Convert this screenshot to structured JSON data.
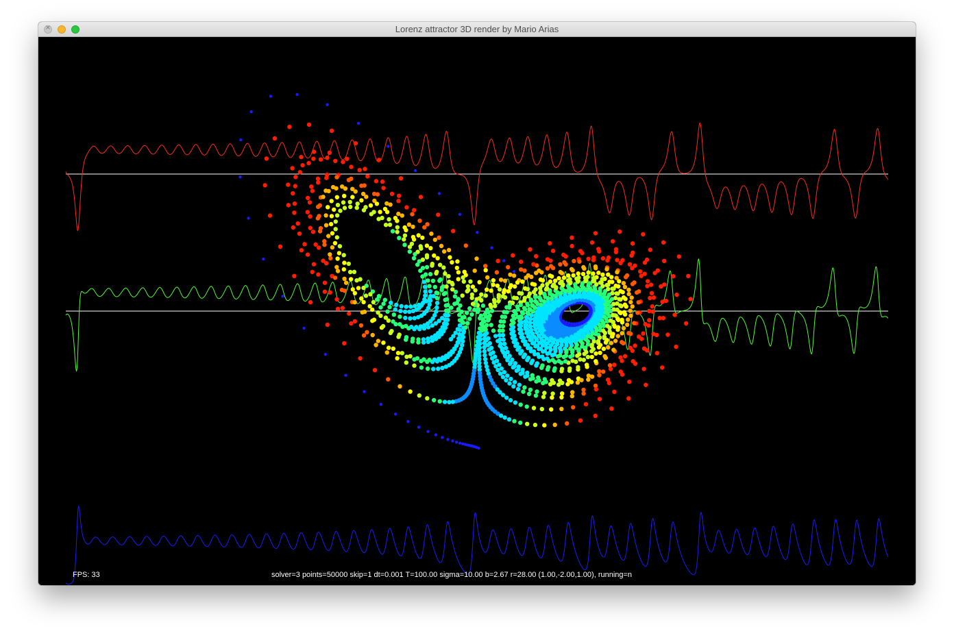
{
  "window": {
    "title": "Lorenz attractor 3D render by Mario Arias"
  },
  "render": {
    "fps_text": "FPS: 33",
    "status_text": "solver=3 points=50000  skip=1  dt=0.001  T=100.00  sigma=10.00  b=2.67  r=28.00  (1.00,-2.00,1.00), running=n"
  },
  "colors": {
    "background": "#000000",
    "x_trace": "#ff2a1a",
    "y_trace": "#4cff2a",
    "z_trace": "#1a1aff",
    "axis": "#ffffff",
    "attractor_palette": [
      "#0000ff",
      "#0a8cff",
      "#00e5ff",
      "#28ff78",
      "#c8ff1e",
      "#ffff00",
      "#ffb400",
      "#ff5a00",
      "#ff1e00"
    ]
  },
  "simulation": {
    "solver": 3,
    "points": 50000,
    "skip": 1,
    "dt": 0.001,
    "T": 100.0,
    "sigma": 10.0,
    "b": 2.67,
    "r": 28.0,
    "initial": [
      1.0,
      -2.0,
      1.0
    ]
  }
}
